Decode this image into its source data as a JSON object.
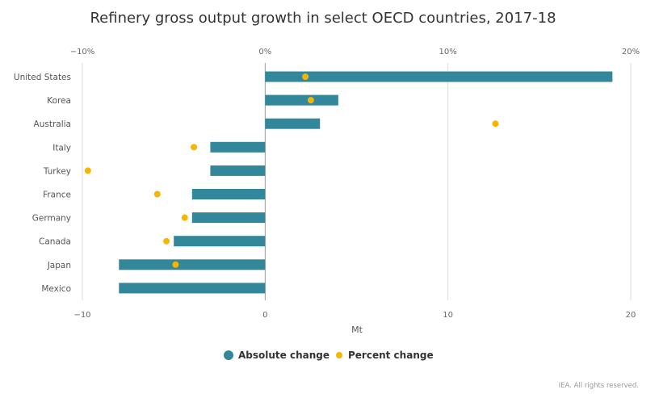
{
  "chart_data": {
    "type": "bar",
    "orientation": "horizontal",
    "title": "Refinery gross output growth in select OECD countries, 2017-18",
    "xlabel": "Mt",
    "xlim": [
      -10,
      20
    ],
    "x_ticks": [
      -10,
      0,
      10,
      20
    ],
    "x_tick_labels": [
      "−10",
      "0",
      "10",
      "20"
    ],
    "top_axis": {
      "lim": [
        -10,
        20
      ],
      "ticks": [
        -10,
        0,
        10,
        20
      ],
      "tick_labels": [
        "−10%",
        "0%",
        "10%",
        "20%"
      ]
    },
    "grid": "vertical",
    "legend_position": "bottom",
    "categories": [
      "United States",
      "Korea",
      "Australia",
      "Italy",
      "Turkey",
      "France",
      "Germany",
      "Canada",
      "Japan",
      "Mexico"
    ],
    "series": [
      {
        "name": "Absolute change",
        "kind": "bar",
        "color": "#33879a",
        "values": [
          19,
          4,
          3,
          -3,
          -3,
          -4,
          -4,
          -5,
          -8,
          -8
        ]
      },
      {
        "name": "Percent change",
        "kind": "dot",
        "color": "#f7b500",
        "values": [
          2.2,
          2.5,
          12.6,
          -3.9,
          -9.7,
          -5.9,
          -4.4,
          -5.4,
          -4.9,
          null
        ]
      }
    ]
  },
  "credit": "IEA. All rights reserved."
}
